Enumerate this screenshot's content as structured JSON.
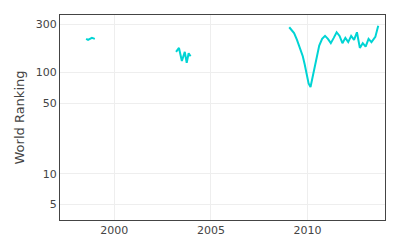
{
  "chart_data": {
    "type": "line",
    "ylabel": "World Ranking",
    "series": [
      {
        "color": "#00D4D4",
        "x": [
          1998.55,
          1998.65,
          1998.85,
          1999.0
        ],
        "values": [
          215,
          210,
          220,
          215
        ]
      },
      {
        "color": "#00D4D4",
        "x": [
          2003.2,
          2003.35,
          2003.5,
          2003.65,
          2003.75,
          2003.85,
          2003.95
        ],
        "values": [
          160,
          175,
          130,
          160,
          125,
          155,
          145
        ]
      },
      {
        "color": "#00D4D4",
        "x": [
          2009.05,
          2009.15,
          2009.3,
          2009.45,
          2009.55,
          2009.65,
          2009.75,
          2009.85,
          2009.95,
          2010.05,
          2010.15,
          2010.3,
          2010.45,
          2010.6,
          2010.75,
          2010.9,
          2011.05,
          2011.2,
          2011.35,
          2011.5,
          2011.65,
          2011.8,
          2011.95,
          2012.1,
          2012.25,
          2012.4,
          2012.55,
          2012.7,
          2012.85,
          2013.0,
          2013.15,
          2013.3,
          2013.5,
          2013.65
        ],
        "values": [
          280,
          265,
          245,
          210,
          185,
          165,
          145,
          120,
          100,
          78,
          72,
          100,
          145,
          185,
          215,
          230,
          215,
          195,
          220,
          250,
          230,
          195,
          220,
          200,
          230,
          210,
          250,
          175,
          195,
          180,
          215,
          200,
          225,
          290
        ]
      }
    ],
    "xlim": [
      1997.2,
      2014.0
    ],
    "ylim": [
      3.5,
      370
    ],
    "xticks": [
      2000,
      2005,
      2010
    ],
    "yticks": [
      5,
      10,
      50,
      100,
      300
    ],
    "log": "y",
    "grid": true
  }
}
